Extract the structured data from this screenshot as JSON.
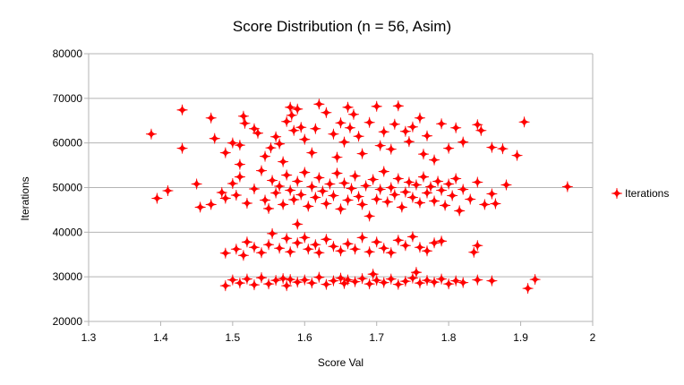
{
  "chart_data": {
    "type": "scatter",
    "title": "Score Distribution (n = 56, Asim)",
    "xlabel": "Score Val",
    "ylabel": "Iterations",
    "xlim": [
      1.3,
      2.0
    ],
    "ylim": [
      20000,
      80000
    ],
    "xticks": [
      "1.3",
      "1.4",
      "1.5",
      "1.6",
      "1.7",
      "1.8",
      "1.9",
      "2"
    ],
    "yticks": [
      "20000",
      "30000",
      "40000",
      "50000",
      "60000",
      "70000",
      "80000"
    ],
    "grid": "horizontal",
    "legend_position": "right",
    "series": [
      {
        "name": "Iterations",
        "color": "#ff0000",
        "marker": "star-cross",
        "points": [
          [
            1.387,
            62000
          ],
          [
            1.43,
            67400
          ],
          [
            1.43,
            58800
          ],
          [
            1.47,
            65600
          ],
          [
            1.475,
            61000
          ],
          [
            1.49,
            57800
          ],
          [
            1.5,
            60000
          ],
          [
            1.51,
            55200
          ],
          [
            1.51,
            59500
          ],
          [
            1.515,
            66000
          ],
          [
            1.517,
            64400
          ],
          [
            1.53,
            63200
          ],
          [
            1.535,
            62200
          ],
          [
            1.545,
            57000
          ],
          [
            1.553,
            58900
          ],
          [
            1.56,
            61400
          ],
          [
            1.565,
            59800
          ],
          [
            1.57,
            55800
          ],
          [
            1.575,
            64800
          ],
          [
            1.58,
            68000
          ],
          [
            1.582,
            66200
          ],
          [
            1.585,
            62800
          ],
          [
            1.59,
            67600
          ],
          [
            1.595,
            63500
          ],
          [
            1.6,
            60800
          ],
          [
            1.61,
            57800
          ],
          [
            1.615,
            63200
          ],
          [
            1.62,
            68700
          ],
          [
            1.63,
            66800
          ],
          [
            1.64,
            62000
          ],
          [
            1.645,
            56800
          ],
          [
            1.65,
            64500
          ],
          [
            1.655,
            60200
          ],
          [
            1.66,
            68000
          ],
          [
            1.663,
            63400
          ],
          [
            1.668,
            66400
          ],
          [
            1.675,
            61500
          ],
          [
            1.68,
            57600
          ],
          [
            1.69,
            64600
          ],
          [
            1.7,
            68200
          ],
          [
            1.705,
            59400
          ],
          [
            1.71,
            62500
          ],
          [
            1.72,
            58600
          ],
          [
            1.725,
            64200
          ],
          [
            1.73,
            68300
          ],
          [
            1.74,
            62600
          ],
          [
            1.745,
            60300
          ],
          [
            1.75,
            63600
          ],
          [
            1.76,
            65600
          ],
          [
            1.765,
            57500
          ],
          [
            1.77,
            61600
          ],
          [
            1.78,
            56200
          ],
          [
            1.79,
            64300
          ],
          [
            1.8,
            58800
          ],
          [
            1.81,
            63400
          ],
          [
            1.82,
            60200
          ],
          [
            1.84,
            64100
          ],
          [
            1.845,
            62800
          ],
          [
            1.86,
            59000
          ],
          [
            1.875,
            58700
          ],
          [
            1.895,
            57200
          ],
          [
            1.905,
            64700
          ],
          [
            1.41,
            49300
          ],
          [
            1.395,
            47600
          ],
          [
            1.45,
            50800
          ],
          [
            1.455,
            45600
          ],
          [
            1.47,
            46200
          ],
          [
            1.485,
            48900
          ],
          [
            1.49,
            47600
          ],
          [
            1.5,
            50900
          ],
          [
            1.505,
            48300
          ],
          [
            1.51,
            52400
          ],
          [
            1.52,
            46500
          ],
          [
            1.53,
            49700
          ],
          [
            1.54,
            53800
          ],
          [
            1.545,
            47200
          ],
          [
            1.55,
            45300
          ],
          [
            1.555,
            51600
          ],
          [
            1.56,
            48800
          ],
          [
            1.565,
            50300
          ],
          [
            1.57,
            46200
          ],
          [
            1.575,
            52800
          ],
          [
            1.58,
            49400
          ],
          [
            1.585,
            47300
          ],
          [
            1.59,
            51400
          ],
          [
            1.595,
            48400
          ],
          [
            1.6,
            53400
          ],
          [
            1.605,
            45800
          ],
          [
            1.61,
            50200
          ],
          [
            1.615,
            47800
          ],
          [
            1.62,
            52200
          ],
          [
            1.625,
            49200
          ],
          [
            1.63,
            46400
          ],
          [
            1.635,
            50800
          ],
          [
            1.64,
            48200
          ],
          [
            1.645,
            53200
          ],
          [
            1.65,
            45200
          ],
          [
            1.655,
            51000
          ],
          [
            1.66,
            47200
          ],
          [
            1.665,
            49800
          ],
          [
            1.67,
            52600
          ],
          [
            1.675,
            48000
          ],
          [
            1.68,
            46200
          ],
          [
            1.685,
            50400
          ],
          [
            1.69,
            43600
          ],
          [
            1.695,
            51800
          ],
          [
            1.7,
            47400
          ],
          [
            1.705,
            49600
          ],
          [
            1.71,
            53600
          ],
          [
            1.715,
            46800
          ],
          [
            1.72,
            50000
          ],
          [
            1.725,
            48400
          ],
          [
            1.73,
            52000
          ],
          [
            1.735,
            45600
          ],
          [
            1.74,
            49000
          ],
          [
            1.745,
            51200
          ],
          [
            1.75,
            47800
          ],
          [
            1.755,
            50600
          ],
          [
            1.76,
            46600
          ],
          [
            1.765,
            52400
          ],
          [
            1.77,
            48800
          ],
          [
            1.775,
            50200
          ],
          [
            1.78,
            47000
          ],
          [
            1.785,
            51400
          ],
          [
            1.79,
            49400
          ],
          [
            1.795,
            46000
          ],
          [
            1.8,
            50800
          ],
          [
            1.805,
            48200
          ],
          [
            1.81,
            52000
          ],
          [
            1.815,
            44800
          ],
          [
            1.82,
            49600
          ],
          [
            1.83,
            47400
          ],
          [
            1.84,
            51200
          ],
          [
            1.85,
            46200
          ],
          [
            1.86,
            48600
          ],
          [
            1.865,
            46400
          ],
          [
            1.88,
            50600
          ],
          [
            1.965,
            50200
          ],
          [
            1.59,
            41800
          ],
          [
            1.49,
            35300
          ],
          [
            1.505,
            36200
          ],
          [
            1.515,
            34800
          ],
          [
            1.52,
            37800
          ],
          [
            1.53,
            36600
          ],
          [
            1.54,
            35400
          ],
          [
            1.55,
            37200
          ],
          [
            1.555,
            39700
          ],
          [
            1.565,
            36400
          ],
          [
            1.575,
            38600
          ],
          [
            1.58,
            35600
          ],
          [
            1.59,
            37600
          ],
          [
            1.6,
            38800
          ],
          [
            1.605,
            36200
          ],
          [
            1.615,
            37200
          ],
          [
            1.62,
            35400
          ],
          [
            1.63,
            38400
          ],
          [
            1.64,
            36800
          ],
          [
            1.65,
            35800
          ],
          [
            1.66,
            37400
          ],
          [
            1.67,
            36200
          ],
          [
            1.68,
            38800
          ],
          [
            1.69,
            35600
          ],
          [
            1.7,
            37800
          ],
          [
            1.71,
            36400
          ],
          [
            1.72,
            35400
          ],
          [
            1.73,
            38200
          ],
          [
            1.74,
            37000
          ],
          [
            1.75,
            39000
          ],
          [
            1.76,
            36600
          ],
          [
            1.77,
            35800
          ],
          [
            1.78,
            37600
          ],
          [
            1.79,
            38000
          ],
          [
            1.835,
            35500
          ],
          [
            1.84,
            37000
          ],
          [
            1.49,
            28000
          ],
          [
            1.5,
            29300
          ],
          [
            1.51,
            28600
          ],
          [
            1.52,
            29500
          ],
          [
            1.53,
            28200
          ],
          [
            1.54,
            29800
          ],
          [
            1.55,
            28400
          ],
          [
            1.56,
            29200
          ],
          [
            1.57,
            29600
          ],
          [
            1.575,
            28000
          ],
          [
            1.58,
            29400
          ],
          [
            1.59,
            28800
          ],
          [
            1.6,
            29300
          ],
          [
            1.61,
            28600
          ],
          [
            1.62,
            29900
          ],
          [
            1.63,
            28300
          ],
          [
            1.64,
            29100
          ],
          [
            1.65,
            29700
          ],
          [
            1.655,
            28500
          ],
          [
            1.66,
            29300
          ],
          [
            1.67,
            28900
          ],
          [
            1.68,
            29600
          ],
          [
            1.69,
            28400
          ],
          [
            1.695,
            30600
          ],
          [
            1.7,
            29200
          ],
          [
            1.71,
            28700
          ],
          [
            1.72,
            29500
          ],
          [
            1.73,
            28300
          ],
          [
            1.74,
            29000
          ],
          [
            1.75,
            29700
          ],
          [
            1.755,
            31000
          ],
          [
            1.76,
            28600
          ],
          [
            1.77,
            29200
          ],
          [
            1.78,
            28800
          ],
          [
            1.79,
            29500
          ],
          [
            1.8,
            28400
          ],
          [
            1.81,
            29100
          ],
          [
            1.82,
            28700
          ],
          [
            1.84,
            29300
          ],
          [
            1.86,
            29100
          ],
          [
            1.91,
            27400
          ],
          [
            1.92,
            29400
          ]
        ]
      }
    ]
  }
}
